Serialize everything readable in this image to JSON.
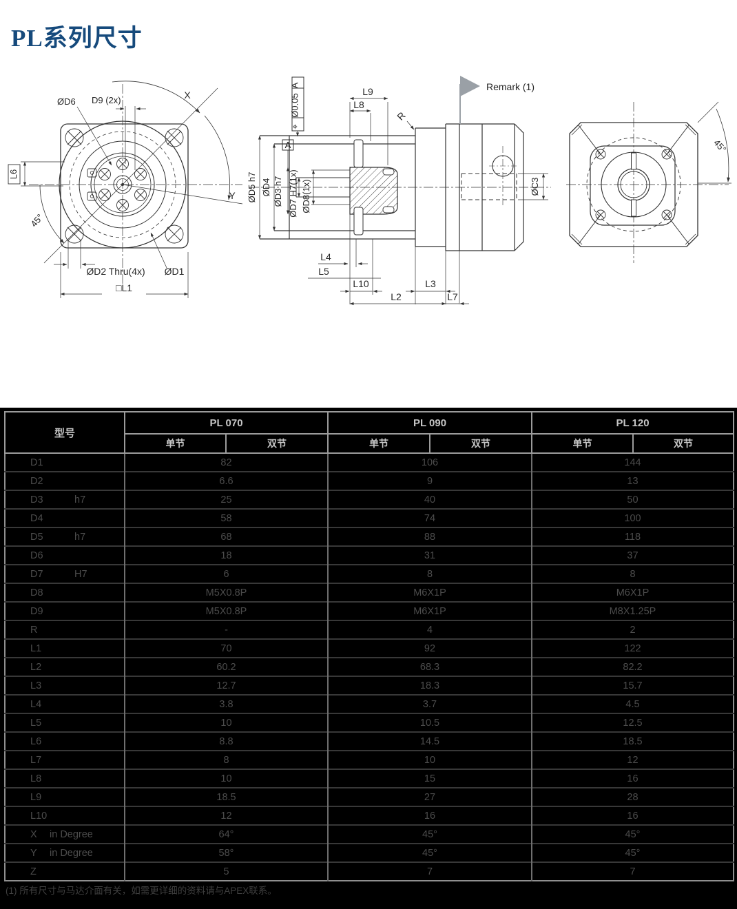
{
  "page": {
    "title": "PL系列尺寸",
    "footnote": "(1) 所有尺寸与马达介面有关，如需更详细的资料请与APEX联系。"
  },
  "drawings": {
    "front_view": {
      "d6_label": "ØD6",
      "d9_label": "D9 (2x)",
      "l6_label": "L6",
      "angle_label": "45°",
      "x_label": "X",
      "y_label": "Y",
      "d2_label": "ØD2 Thru(4x)",
      "d1_label": "ØD1",
      "l1_label": "□L1"
    },
    "section_view": {
      "tolerance_symbol": "⌖",
      "tolerance_value": "Ø0.05",
      "tolerance_datum": "A",
      "datum_label": "A",
      "l9_label": "L9",
      "l8_label": "L8",
      "r_label": "R",
      "remark_label": "Remark (1)",
      "d5_label": "ØD5 h7",
      "d4_label": "ØD4",
      "d3_label": "ØD3 h7",
      "d7_label": "ØD7 H7(1x)",
      "d8_label": "ØD8(1x)",
      "c3_label": "ØC3",
      "l4_label": "L4",
      "l5_label": "L5",
      "l10_label": "L10",
      "l3_label": "L3",
      "l2_label": "L2",
      "l7_label": "L7"
    },
    "rear_view": {
      "angle_label": "45°"
    }
  },
  "table": {
    "corner_label": "型号",
    "groups": [
      {
        "name": "PL 070",
        "sub": [
          "单节",
          "双节"
        ]
      },
      {
        "name": "PL 090",
        "sub": [
          "单节",
          "双节"
        ]
      },
      {
        "name": "PL 120",
        "sub": [
          "单节",
          "双节"
        ]
      }
    ],
    "rows": [
      {
        "label": "D1",
        "values": [
          "82",
          "106",
          "144"
        ]
      },
      {
        "label": "D2",
        "values": [
          "6.6",
          "9",
          "13"
        ]
      },
      {
        "label": "D3",
        "tol": "h7",
        "values": [
          "25",
          "40",
          "50"
        ]
      },
      {
        "label": "D4",
        "values": [
          "58",
          "74",
          "100"
        ]
      },
      {
        "label": "D5",
        "tol": "h7",
        "values": [
          "68",
          "88",
          "118"
        ]
      },
      {
        "label": "D6",
        "values": [
          "18",
          "31",
          "37"
        ]
      },
      {
        "label": "D7",
        "tol": "H7",
        "values": [
          "6",
          "8",
          "8"
        ]
      },
      {
        "label": "D8",
        "values": [
          "M5X0.8P",
          "M6X1P",
          "M6X1P"
        ]
      },
      {
        "label": "D9",
        "values": [
          "M5X0.8P",
          "M6X1P",
          "M8X1.25P"
        ]
      },
      {
        "label": "R",
        "values": [
          "-",
          "4",
          "2"
        ]
      },
      {
        "label": "L1",
        "values": [
          "70",
          "92",
          "122"
        ]
      },
      {
        "label": "L2",
        "values": [
          "60.2",
          "68.3",
          "82.2"
        ]
      },
      {
        "label": "L3",
        "values": [
          "12.7",
          "18.3",
          "15.7"
        ]
      },
      {
        "label": "L4",
        "values": [
          "3.8",
          "3.7",
          "4.5"
        ]
      },
      {
        "label": "L5",
        "values": [
          "10",
          "10.5",
          "12.5"
        ]
      },
      {
        "label": "L6",
        "values": [
          "8.8",
          "14.5",
          "18.5"
        ]
      },
      {
        "label": "L7",
        "values": [
          "8",
          "10",
          "12"
        ]
      },
      {
        "label": "L8",
        "values": [
          "10",
          "15",
          "16"
        ]
      },
      {
        "label": "L9",
        "values": [
          "18.5",
          "27",
          "28"
        ]
      },
      {
        "label": "L10",
        "values": [
          "12",
          "16",
          "16"
        ]
      },
      {
        "label": "X",
        "unit": "in Degree",
        "values": [
          "64°",
          "45°",
          "45°"
        ]
      },
      {
        "label": "Y",
        "unit": "in Degree",
        "values": [
          "58°",
          "45°",
          "45°"
        ]
      },
      {
        "label": "Z",
        "values": [
          "5",
          "7",
          "7"
        ]
      }
    ]
  }
}
